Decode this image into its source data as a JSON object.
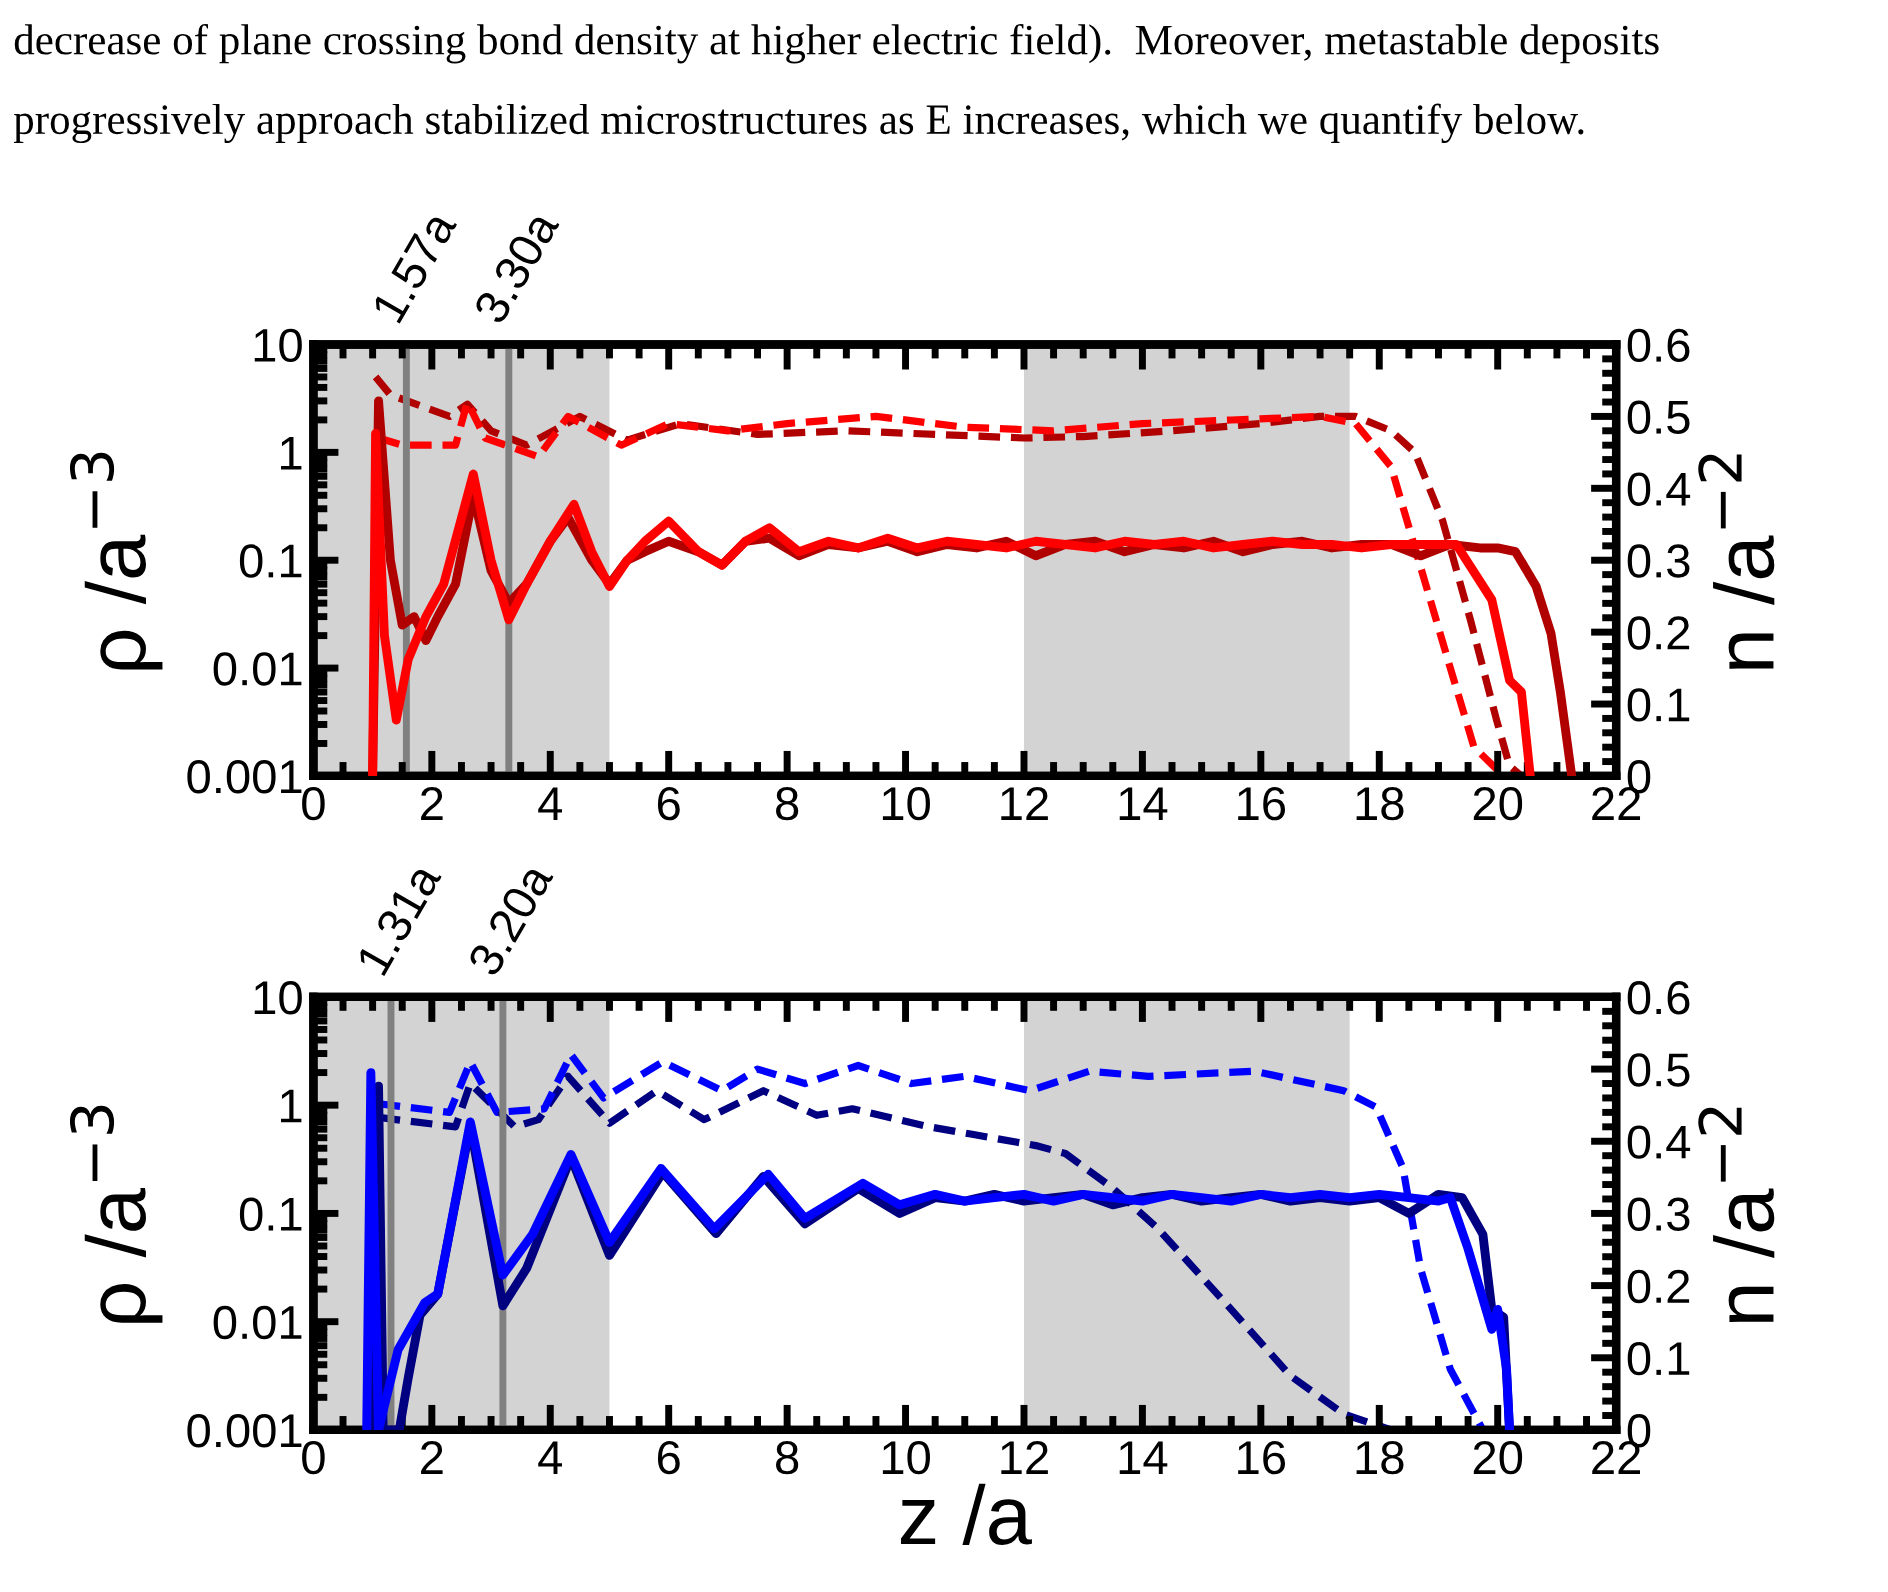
{
  "chart_data": [
    {
      "type": "line",
      "annotations": [
        "decrease of plane crossing bond density at higher electric field).  Moreover, metastable deposits",
        "progressively approach stabilized microstructures as E increases, which we quantify below."
      ],
      "ylabel": "ρ /a$^{−3}$",
      "y2label": "n /a$^{−2}$",
      "log": "y",
      "grid": false,
      "xlim": [
        0,
        22
      ],
      "xticks": [
        0,
        2,
        4,
        6,
        8,
        10,
        12,
        14,
        16,
        18,
        20,
        22
      ],
      "ylim": [
        0.001,
        10
      ],
      "yticks": [
        0.001,
        0.01,
        0.1,
        1,
        10
      ],
      "y2lim": [
        0,
        0.6
      ],
      "y2ticks": [
        0,
        0.1,
        0.2,
        0.3,
        0.4,
        0.5,
        0.6
      ],
      "bands": [
        {
          "axis": "x",
          "from": 0,
          "to": 5,
          "color": "#d3d3d3"
        },
        {
          "axis": "x",
          "from": 12,
          "to": 17.5,
          "color": "#d3d3d3"
        }
      ],
      "ref_lines": [
        {
          "axis": "x",
          "value": 1.57,
          "label": "1.57a",
          "color": "#808080"
        },
        {
          "axis": "x",
          "value": 3.3,
          "label": "3.30a",
          "color": "#808080"
        }
      ],
      "series": [
        {
          "color": "#b00000",
          "line_style": "solid",
          "x": [
            1.0,
            1.1,
            1.3,
            1.5,
            1.7,
            1.9,
            2.1,
            2.4,
            2.7,
            3.0,
            3.3,
            3.6,
            4.0,
            4.3,
            4.7,
            5.0,
            5.3,
            5.6,
            6.0,
            6.5,
            6.9,
            7.3,
            7.7,
            8.2,
            8.7,
            9.2,
            9.7,
            10.2,
            10.7,
            11.2,
            11.7,
            12.2,
            12.7,
            13.2,
            13.7,
            14.2,
            14.7,
            15.2,
            15.7,
            16.2,
            16.7,
            17.2,
            17.7,
            18.2,
            18.7,
            19.2,
            19.7,
            20.0,
            20.3,
            20.65,
            20.9,
            21.06,
            21.2,
            21.25
          ],
          "values": [
            0.001,
            3,
            0.1,
            0.025,
            0.03,
            0.018,
            0.03,
            0.06,
            0.4,
            0.08,
            0.04,
            0.06,
            0.15,
            0.25,
            0.1,
            0.06,
            0.1,
            0.12,
            0.15,
            0.12,
            0.09,
            0.15,
            0.16,
            0.11,
            0.14,
            0.13,
            0.15,
            0.12,
            0.14,
            0.13,
            0.15,
            0.11,
            0.14,
            0.15,
            0.12,
            0.14,
            0.13,
            0.15,
            0.12,
            0.14,
            0.15,
            0.13,
            0.14,
            0.14,
            0.11,
            0.14,
            0.13,
            0.13,
            0.12,
            0.057,
            0.021,
            0.0059,
            0.0016,
            0.001
          ]
        },
        {
          "color": "#ff0000",
          "line_style": "solid",
          "x": [
            1.0,
            1.05,
            1.2,
            1.4,
            1.6,
            1.9,
            2.2,
            2.7,
            3.0,
            3.3,
            3.6,
            4.0,
            4.4,
            4.7,
            5.0,
            5.3,
            5.6,
            6.0,
            6.5,
            6.9,
            7.3,
            7.7,
            8.2,
            8.7,
            9.2,
            9.7,
            10.2,
            10.7,
            11.2,
            11.7,
            12.2,
            12.7,
            13.2,
            13.7,
            14.2,
            14.7,
            15.2,
            15.7,
            16.2,
            16.7,
            17.2,
            17.7,
            18.2,
            18.7,
            19.3,
            19.9,
            20.2,
            20.4,
            20.55
          ],
          "values": [
            0.001,
            1.5,
            0.02,
            0.0033,
            0.012,
            0.03,
            0.06,
            0.63,
            0.1,
            0.028,
            0.06,
            0.15,
            0.33,
            0.12,
            0.057,
            0.1,
            0.15,
            0.23,
            0.12,
            0.09,
            0.15,
            0.2,
            0.12,
            0.15,
            0.13,
            0.16,
            0.13,
            0.15,
            0.14,
            0.13,
            0.15,
            0.14,
            0.13,
            0.15,
            0.14,
            0.15,
            0.13,
            0.14,
            0.15,
            0.14,
            0.14,
            0.13,
            0.14,
            0.14,
            0.14,
            0.043,
            0.0077,
            0.006,
            0.001
          ]
        },
        {
          "color": "#b00000",
          "line_style": "dashed",
          "axis": "y2",
          "x": [
            1.05,
            1.3,
            2.3,
            2.6,
            3.0,
            3.6,
            4.5,
            5.3,
            6.2,
            7.5,
            9.0,
            10.5,
            12.0,
            13.0,
            14.5,
            16.0,
            17.0,
            17.6,
            18.2,
            18.6,
            19.07,
            19.54,
            19.98,
            20.2,
            20.4
          ],
          "values": [
            0.555,
            0.53,
            0.5,
            0.517,
            0.48,
            0.46,
            0.5,
            0.467,
            0.49,
            0.475,
            0.48,
            0.475,
            0.47,
            0.472,
            0.48,
            0.49,
            0.5,
            0.5,
            0.48,
            0.45,
            0.355,
            0.217,
            0.078,
            0.014,
            0
          ]
        },
        {
          "color": "#ff0000",
          "line_style": "dashed",
          "axis": "y2",
          "x": [
            1.1,
            1.5,
            2.4,
            2.6,
            2.9,
            3.8,
            4.3,
            5.2,
            6.0,
            7.0,
            8.0,
            9.5,
            11.0,
            12.5,
            14.0,
            15.5,
            17.0,
            17.6,
            18.2,
            18.7,
            19.2,
            19.6,
            20.1
          ],
          "values": [
            0.47,
            0.46,
            0.46,
            0.52,
            0.47,
            0.444,
            0.5,
            0.46,
            0.49,
            0.48,
            0.49,
            0.5,
            0.485,
            0.48,
            0.49,
            0.495,
            0.5,
            0.49,
            0.43,
            0.29,
            0.15,
            0.04,
            0
          ]
        }
      ]
    },
    {
      "type": "line",
      "xlabel": "z /a",
      "ylabel": "ρ /a$^{−3}$",
      "y2label": "n /a$^{−2}$",
      "log": "y",
      "grid": false,
      "xlim": [
        0,
        22
      ],
      "xticks": [
        0,
        2,
        4,
        6,
        8,
        10,
        12,
        14,
        16,
        18,
        20,
        22
      ],
      "ylim": [
        0.001,
        10
      ],
      "yticks": [
        0.001,
        0.01,
        0.1,
        1,
        10
      ],
      "y2lim": [
        0,
        0.6
      ],
      "y2ticks": [
        0,
        0.1,
        0.2,
        0.3,
        0.4,
        0.5,
        0.6
      ],
      "bands": [
        {
          "axis": "x",
          "from": 0,
          "to": 5,
          "color": "#d3d3d3"
        },
        {
          "axis": "x",
          "from": 12,
          "to": 17.5,
          "color": "#d3d3d3"
        }
      ],
      "ref_lines": [
        {
          "axis": "x",
          "value": 1.31,
          "label": "1.31a",
          "color": "#808080"
        },
        {
          "axis": "x",
          "value": 3.2,
          "label": "3.20a",
          "color": "#808080"
        }
      ],
      "series": [
        {
          "color": "#000080",
          "line_style": "solid",
          "x": [
            1.0,
            1.1,
            1.18,
            1.45,
            1.6,
            1.8,
            2.1,
            2.65,
            3.2,
            3.6,
            4.35,
            5.0,
            5.9,
            6.8,
            7.6,
            8.3,
            9.2,
            9.9,
            10.5,
            11.0,
            11.5,
            12.0,
            12.5,
            13.0,
            13.5,
            14.0,
            14.5,
            15.0,
            15.5,
            16.0,
            16.5,
            17.0,
            17.5,
            18.0,
            18.5,
            19.0,
            19.4,
            19.75,
            19.9,
            20.1,
            20.2
          ],
          "values": [
            0.001,
            1.5,
            0.001,
            0.001,
            0.003,
            0.0115,
            0.018,
            0.65,
            0.014,
            0.031,
            0.33,
            0.041,
            0.24,
            0.065,
            0.22,
            0.08,
            0.17,
            0.1,
            0.14,
            0.13,
            0.15,
            0.13,
            0.14,
            0.15,
            0.12,
            0.14,
            0.15,
            0.13,
            0.14,
            0.15,
            0.13,
            0.14,
            0.13,
            0.14,
            0.1,
            0.15,
            0.14,
            0.064,
            0.013,
            0.011,
            0.001
          ]
        },
        {
          "color": "#0000ff",
          "line_style": "solid",
          "x": [
            0.9,
            0.97,
            1.1,
            1.43,
            1.88,
            2.1,
            2.65,
            3.2,
            3.7,
            4.35,
            5.0,
            5.87,
            6.77,
            7.68,
            8.3,
            9.28,
            9.9,
            10.5,
            11.0,
            11.5,
            12.0,
            12.5,
            13.0,
            13.5,
            14.0,
            14.5,
            15.0,
            15.5,
            16.0,
            16.5,
            17.0,
            17.5,
            18.0,
            18.5,
            19.0,
            19.2,
            19.5,
            19.9,
            20.0,
            20.15,
            20.2
          ],
          "values": [
            0.001,
            2,
            0.001,
            0.0055,
            0.015,
            0.018,
            0.7,
            0.027,
            0.064,
            0.35,
            0.054,
            0.26,
            0.072,
            0.23,
            0.09,
            0.19,
            0.12,
            0.15,
            0.13,
            0.14,
            0.15,
            0.13,
            0.15,
            0.14,
            0.13,
            0.15,
            0.14,
            0.13,
            0.15,
            0.14,
            0.15,
            0.14,
            0.15,
            0.14,
            0.13,
            0.14,
            0.047,
            0.0085,
            0.013,
            0.0036,
            0.001
          ]
        },
        {
          "color": "#000080",
          "line_style": "dashed",
          "axis": "y2",
          "x": [
            1.1,
            2.4,
            2.65,
            3.4,
            3.8,
            4.3,
            5.0,
            5.8,
            6.6,
            7.6,
            8.5,
            9.1,
            10.4,
            11.1,
            12.2,
            12.7,
            13.5,
            14.25,
            15.4,
            16.5,
            17.4,
            18.2
          ],
          "values": [
            0.433,
            0.42,
            0.48,
            0.42,
            0.43,
            0.49,
            0.425,
            0.47,
            0.43,
            0.47,
            0.436,
            0.445,
            0.42,
            0.41,
            0.394,
            0.383,
            0.335,
            0.28,
            0.176,
            0.075,
            0.022,
            0
          ]
        },
        {
          "color": "#0000ff",
          "line_style": "dashed",
          "axis": "y2",
          "x": [
            1.1,
            2.3,
            2.65,
            3.1,
            3.9,
            4.35,
            4.9,
            5.9,
            6.9,
            7.5,
            8.3,
            9.2,
            10.1,
            11.0,
            12.1,
            13.1,
            14.1,
            15.9,
            17.4,
            17.95,
            18.4,
            18.7,
            19.2,
            19.75
          ],
          "values": [
            0.452,
            0.44,
            0.51,
            0.44,
            0.445,
            0.52,
            0.46,
            0.51,
            0.47,
            0.5,
            0.48,
            0.505,
            0.48,
            0.49,
            0.47,
            0.497,
            0.49,
            0.497,
            0.47,
            0.447,
            0.363,
            0.223,
            0.084,
            0
          ]
        }
      ]
    }
  ]
}
